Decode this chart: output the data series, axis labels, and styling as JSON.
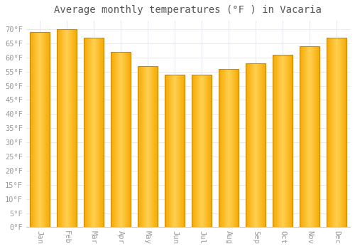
{
  "title": "Average monthly temperatures (°F ) in Vacaria",
  "months": [
    "Jan",
    "Feb",
    "Mar",
    "Apr",
    "May",
    "Jun",
    "Jul",
    "Aug",
    "Sep",
    "Oct",
    "Nov",
    "Dec"
  ],
  "values": [
    69,
    70,
    67,
    62,
    57,
    54,
    54,
    56,
    58,
    61,
    64,
    67
  ],
  "bar_color_center": "#FFD050",
  "bar_color_edge": "#F5A800",
  "background_color": "#FFFFFF",
  "grid_color": "#E8E8F0",
  "ylim": [
    0,
    73
  ],
  "yticks": [
    0,
    5,
    10,
    15,
    20,
    25,
    30,
    35,
    40,
    45,
    50,
    55,
    60,
    65,
    70
  ],
  "ytick_labels": [
    "0°F",
    "5°F",
    "10°F",
    "15°F",
    "20°F",
    "25°F",
    "30°F",
    "35°F",
    "40°F",
    "45°F",
    "50°F",
    "55°F",
    "60°F",
    "65°F",
    "70°F"
  ],
  "title_fontsize": 10,
  "tick_fontsize": 7.5,
  "xlabel_rotation": 270,
  "bar_width": 0.75
}
